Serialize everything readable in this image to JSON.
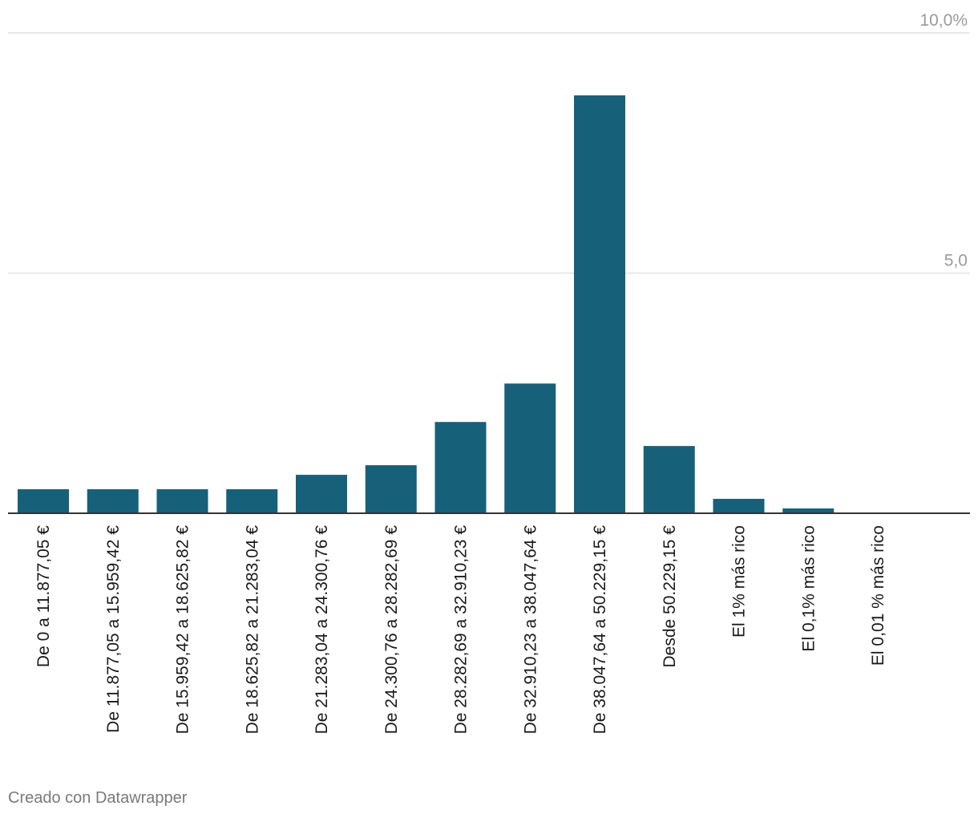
{
  "chart_data": {
    "type": "bar",
    "categories": [
      "De 0 a 11.877,05 €",
      "De 11.877,05 a 15.959,42 €",
      "De 15.959,42 a 18.625,82 €",
      "De 18.625,82 a 21.283,04 €",
      "De 21.283,04 a 24.300,76 €",
      "De 24.300,76 a 28.282,69 €",
      "De 28.282,69 a 32.910,23 €",
      "De 32.910,23 a 38.047,64 €",
      "De 38.047,64 a 50.229,15 €",
      "Desde 50.229,15 €",
      "El 1% más rico",
      "El 0,1% más rico",
      "El 0,01 % más rico"
    ],
    "values": [
      0.5,
      0.5,
      0.5,
      0.5,
      0.8,
      1.0,
      1.9,
      2.7,
      8.7,
      1.4,
      0.3,
      0.1,
      0.0
    ],
    "ylim": [
      0,
      10
    ],
    "yticks": [
      {
        "value": 5,
        "label": "5,0"
      },
      {
        "value": 10,
        "label": "10,0%"
      }
    ],
    "grid": true,
    "bar_color": "#17607a"
  },
  "footer": {
    "credit": "Creado con Datawrapper"
  }
}
